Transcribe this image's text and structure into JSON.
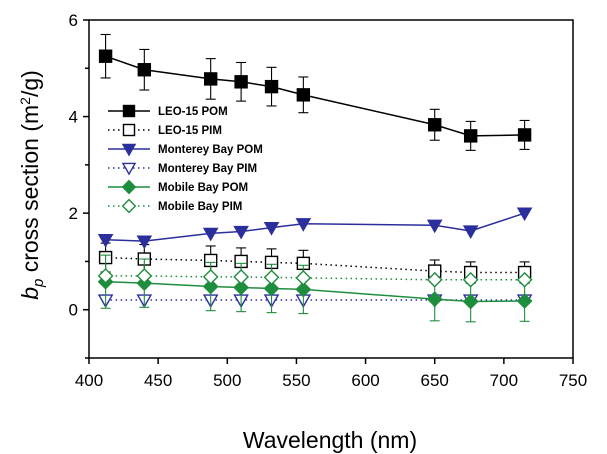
{
  "chart_data": {
    "type": "line",
    "xlabel": "Wavelength (nm)",
    "ylabel_prefix": "b",
    "ylabel_sub": "p",
    "ylabel_main": " cross section (m",
    "ylabel_sup": "2",
    "ylabel_end": "/g)",
    "xlim": [
      400,
      750
    ],
    "ylim": [
      -1,
      6
    ],
    "xticks": [
      400,
      450,
      500,
      550,
      600,
      650,
      700,
      750
    ],
    "yticks": [
      0,
      2,
      4,
      6
    ],
    "grid": false,
    "legend_position": "top-left",
    "series": [
      {
        "name": "LEO-15 POM",
        "color": "#000000",
        "marker": "square",
        "filled": true,
        "line": "solid",
        "x": [
          412,
          440,
          488,
          510,
          532,
          555,
          650,
          676,
          715
        ],
        "y": [
          5.25,
          4.97,
          4.78,
          4.72,
          4.62,
          4.45,
          3.83,
          3.6,
          3.62
        ],
        "err": [
          0.45,
          0.42,
          0.42,
          0.4,
          0.4,
          0.37,
          0.32,
          0.3,
          0.3
        ]
      },
      {
        "name": "LEO-15 PIM",
        "color": "#000000",
        "marker": "square",
        "filled": false,
        "line": "dotted",
        "x": [
          412,
          440,
          488,
          510,
          532,
          555,
          650,
          676,
          715
        ],
        "y": [
          1.08,
          1.05,
          1.02,
          1.0,
          0.98,
          0.96,
          0.8,
          0.77,
          0.77
        ],
        "err": [
          0.3,
          0.3,
          0.3,
          0.28,
          0.28,
          0.27,
          0.23,
          0.22,
          0.22
        ]
      },
      {
        "name": "Monterey Bay POM",
        "color": "#2b2f9c",
        "marker": "triangle-down",
        "filled": true,
        "line": "solid",
        "x": [
          412,
          440,
          488,
          510,
          532,
          555,
          650,
          676,
          715
        ],
        "y": [
          1.45,
          1.42,
          1.58,
          1.62,
          1.7,
          1.78,
          1.75,
          1.63,
          2.0
        ],
        "err": []
      },
      {
        "name": "Monterey Bay PIM",
        "color": "#2b2f9c",
        "marker": "triangle-down",
        "filled": false,
        "line": "dotted",
        "x": [
          412,
          440,
          488,
          510,
          532,
          555,
          650,
          676,
          715
        ],
        "y": [
          0.2,
          0.2,
          0.2,
          0.2,
          0.2,
          0.2,
          0.2,
          0.2,
          0.2
        ],
        "err": []
      },
      {
        "name": "Mobile Bay POM",
        "color": "#1e8e3e",
        "marker": "diamond",
        "filled": true,
        "line": "solid",
        "x": [
          412,
          440,
          488,
          510,
          532,
          555,
          650,
          676,
          715
        ],
        "y": [
          0.58,
          0.55,
          0.48,
          0.46,
          0.44,
          0.42,
          0.22,
          0.17,
          0.18
        ],
        "err": [
          0.55,
          0.5,
          0.5,
          0.5,
          0.5,
          0.5,
          0.45,
          0.42,
          0.42
        ]
      },
      {
        "name": "Mobile Bay PIM",
        "color": "#1e8e3e",
        "marker": "diamond",
        "filled": false,
        "line": "dotted",
        "x": [
          412,
          440,
          488,
          510,
          532,
          555,
          650,
          676,
          715
        ],
        "y": [
          0.7,
          0.7,
          0.68,
          0.68,
          0.67,
          0.66,
          0.62,
          0.62,
          0.62
        ],
        "err": []
      }
    ]
  }
}
